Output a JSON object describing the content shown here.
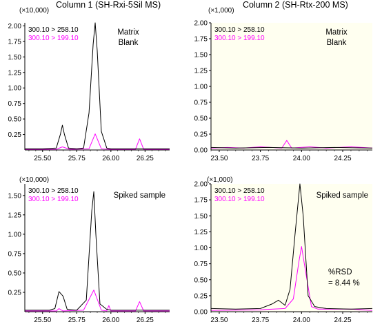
{
  "titles": {
    "col1": "Column 1 (SH-Rxi-5Sil MS)",
    "col2": "Column 2 (SH-Rtx-200 MS)"
  },
  "colors": {
    "series1": "#000000",
    "series2": "#ff00ff",
    "bg_white": "#ffffff",
    "bg_yellow": "#fffff0"
  },
  "chart_data": [
    {
      "type": "line",
      "scale_label": "(×10,000)",
      "annotation": [
        "Matrix",
        "Blank"
      ],
      "background": "white",
      "xlim": [
        25.37,
        26.43
      ],
      "ylim": [
        0,
        2.05
      ],
      "xticks": [
        "25.50",
        "25.75",
        "26.00",
        "26.25"
      ],
      "yticks": [
        "0.25",
        "0.50",
        "0.75",
        "1.00",
        "1.25",
        "1.50",
        "1.75",
        "2.00"
      ],
      "legend": [
        "300.10 > 258.10",
        "300.10 > 199.10"
      ],
      "series": [
        {
          "name": "300.10 > 258.10",
          "x": [
            25.37,
            25.5,
            25.6,
            25.63,
            25.645,
            25.66,
            25.69,
            25.75,
            25.8,
            25.84,
            25.87,
            25.885,
            25.9,
            25.93,
            25.97,
            26.0,
            26.1,
            26.25,
            26.43
          ],
          "y": [
            0.02,
            0.02,
            0.03,
            0.25,
            0.4,
            0.25,
            0.03,
            0.02,
            0.03,
            0.6,
            1.7,
            2.05,
            1.6,
            0.3,
            0.03,
            0.02,
            0.02,
            0.02,
            0.02
          ]
        },
        {
          "name": "300.10 > 199.10",
          "x": [
            25.37,
            25.6,
            25.645,
            25.7,
            25.84,
            25.885,
            25.93,
            26.0,
            26.18,
            26.21,
            26.24,
            26.43
          ],
          "y": [
            0.01,
            0.01,
            0.05,
            0.01,
            0.02,
            0.26,
            0.02,
            0.01,
            0.01,
            0.18,
            0.01,
            0.01
          ]
        }
      ]
    },
    {
      "type": "line",
      "scale_label": "(×1,000)",
      "annotation": [
        "Matrix",
        "Blank"
      ],
      "background": "yellow",
      "xlim": [
        23.45,
        24.43
      ],
      "ylim": [
        0,
        2.0
      ],
      "xticks": [
        "23.50",
        "23.75",
        "24.00",
        "24.25"
      ],
      "yticks": [
        "0.25",
        "0.50",
        "0.75",
        "1.00",
        "1.25",
        "1.50",
        "1.75",
        "2.00"
      ],
      "legend": [
        "300.10 > 258.10",
        "300.10 > 199.10"
      ],
      "series": [
        {
          "name": "300.10 > 258.10",
          "x": [
            23.45,
            23.6,
            23.8,
            24.0,
            24.2,
            24.43
          ],
          "y": [
            0.04,
            0.03,
            0.04,
            0.03,
            0.04,
            0.03
          ]
        },
        {
          "name": "300.10 > 199.10",
          "x": [
            23.45,
            23.55,
            23.65,
            23.75,
            23.88,
            23.91,
            23.94,
            24.05,
            24.15,
            24.3,
            24.43
          ],
          "y": [
            0.03,
            0.04,
            0.03,
            0.05,
            0.03,
            0.15,
            0.03,
            0.05,
            0.03,
            0.05,
            0.03
          ]
        }
      ]
    },
    {
      "type": "line",
      "scale_label": "(×10,000)",
      "annotation": [
        "Spiked sample"
      ],
      "background": "white",
      "xlim": [
        25.37,
        26.43
      ],
      "ylim": [
        0,
        1.65
      ],
      "xticks": [
        "25.50",
        "25.75",
        "26.00",
        "26.25"
      ],
      "yticks": [
        "0.25",
        "0.50",
        "0.75",
        "1.00",
        "1.25",
        "1.50"
      ],
      "legend": [
        "300.10 > 258.10",
        "300.10 > 199.10"
      ],
      "series": [
        {
          "name": "300.10 > 258.10",
          "x": [
            25.37,
            25.55,
            25.59,
            25.62,
            25.65,
            25.68,
            25.75,
            25.82,
            25.86,
            25.875,
            25.89,
            25.92,
            25.97,
            26.0,
            26.1,
            26.3,
            26.43
          ],
          "y": [
            0.02,
            0.02,
            0.04,
            0.26,
            0.2,
            0.03,
            0.02,
            0.15,
            1.3,
            1.55,
            1.0,
            0.1,
            0.03,
            0.02,
            0.02,
            0.02,
            0.02
          ]
        },
        {
          "name": "300.10 > 199.10",
          "x": [
            25.37,
            25.6,
            25.62,
            25.65,
            25.8,
            25.875,
            25.93,
            25.97,
            25.985,
            26.0,
            26.18,
            26.21,
            26.24,
            26.43
          ],
          "y": [
            0.01,
            0.01,
            0.04,
            0.01,
            0.02,
            0.28,
            0.02,
            0.01,
            0.08,
            0.01,
            0.01,
            0.13,
            0.01,
            0.01
          ]
        }
      ]
    },
    {
      "type": "line",
      "scale_label": "(×1,000)",
      "annotation": [
        "Spiked sample",
        "%RSD",
        "= 8.44 %"
      ],
      "background": "yellow",
      "xlim": [
        23.45,
        24.43
      ],
      "ylim": [
        0,
        2.0
      ],
      "xticks": [
        "23.50",
        "23.75",
        "24.00",
        "24.25"
      ],
      "yticks": [
        "0.25",
        "0.50",
        "0.75",
        "1.00",
        "1.25",
        "1.50",
        "1.75",
        "2.00"
      ],
      "legend": [
        "300.10 > 258.10",
        "300.10 > 199.10"
      ],
      "series": [
        {
          "name": "300.10 > 258.10",
          "x": [
            23.45,
            23.6,
            23.75,
            23.82,
            23.86,
            23.9,
            23.93,
            23.96,
            23.99,
            24.01,
            24.04,
            24.08,
            24.15,
            24.3,
            24.43
          ],
          "y": [
            0.05,
            0.04,
            0.05,
            0.12,
            0.18,
            0.1,
            0.35,
            1.2,
            2.0,
            1.5,
            0.25,
            0.08,
            0.05,
            0.04,
            0.05
          ]
        },
        {
          "name": "300.10 > 199.10",
          "x": [
            23.45,
            23.75,
            23.9,
            23.95,
            23.985,
            24.0,
            24.02,
            24.06,
            24.1,
            24.3,
            24.43
          ],
          "y": [
            0.02,
            0.03,
            0.05,
            0.2,
            0.8,
            1.02,
            0.7,
            0.08,
            0.04,
            0.04,
            0.02
          ]
        }
      ]
    }
  ]
}
